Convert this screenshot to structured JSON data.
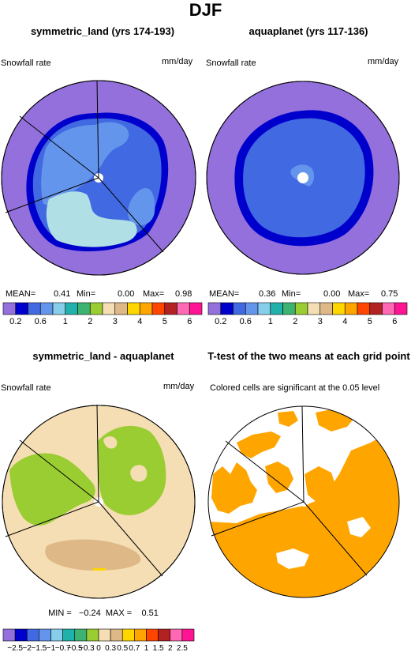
{
  "title": "DJF",
  "panels": [
    {
      "title": "symmetric_land (yrs 174-193)",
      "left_label": "Snowfall rate",
      "right_label": "mm/day",
      "stats": {
        "mean_label": "MEAN=",
        "mean": "0.41",
        "min_label": "Min=",
        "min": "0.00",
        "max_label": "Max=",
        "max": "0.98"
      }
    },
    {
      "title": "aquaplanet (yrs 117-136)",
      "left_label": "Snowfall rate",
      "right_label": "mm/day",
      "stats": {
        "mean_label": "MEAN=",
        "mean": "0.36",
        "min_label": "Min=",
        "min": "0.00",
        "max_label": "Max=",
        "max": "0.75"
      }
    },
    {
      "title": "symmetric_land - aquaplanet",
      "left_label": "Snowfall rate",
      "right_label": "mm/day",
      "stats_text": "MIN =   −0.24  MAX =    0.51"
    },
    {
      "title": "T-test of the two means at each grid point",
      "left_label": "Colored cells are significant at the 0.05 level"
    }
  ],
  "chart_data": [
    {
      "type": "heatmap",
      "projection": "polar stereographic (north pole)",
      "panel": "symmetric_land (yrs 174-193)",
      "units": "mm/day",
      "levels": [
        0.2,
        0.4,
        0.6,
        0.8,
        1,
        1.5,
        2,
        2.5,
        3,
        3.5,
        4,
        4.5,
        5,
        5.5,
        6
      ],
      "level_labels": [
        "0.2",
        "0.6",
        "1",
        "2",
        "3",
        "4",
        "5",
        "6"
      ],
      "colors": [
        "#9370db",
        "#0000cd",
        "#4169e1",
        "#6495ed",
        "#87ceeb",
        "#20b2aa",
        "#3cb371",
        "#9acd32",
        "#f5deb3",
        "#deb887",
        "#ffd700",
        "#ffa500",
        "#ff4500",
        "#b22222",
        "#ff69b4",
        "#ff1493"
      ],
      "mean": 0.41,
      "min": 0.0,
      "max": 0.98
    },
    {
      "type": "heatmap",
      "projection": "polar stereographic (north pole)",
      "panel": "aquaplanet (yrs 117-136)",
      "units": "mm/day",
      "levels": [
        0.2,
        0.4,
        0.6,
        0.8,
        1,
        1.5,
        2,
        2.5,
        3,
        3.5,
        4,
        4.5,
        5,
        5.5,
        6
      ],
      "level_labels": [
        "0.2",
        "0.6",
        "1",
        "2",
        "3",
        "4",
        "5",
        "6"
      ],
      "colors": [
        "#9370db",
        "#0000cd",
        "#4169e1",
        "#6495ed",
        "#87ceeb",
        "#20b2aa",
        "#3cb371",
        "#9acd32",
        "#f5deb3",
        "#deb887",
        "#ffd700",
        "#ffa500",
        "#ff4500",
        "#b22222",
        "#ff69b4",
        "#ff1493"
      ],
      "mean": 0.36,
      "min": 0.0,
      "max": 0.75
    },
    {
      "type": "heatmap",
      "projection": "polar stereographic (north pole)",
      "panel": "symmetric_land - aquaplanet",
      "units": "mm/day",
      "levels": [
        -2.5,
        -2,
        -1.5,
        -1,
        -0.7,
        -0.5,
        -0.3,
        0,
        0.3,
        0.5,
        0.7,
        1,
        1.5,
        2,
        2.5
      ],
      "level_labels": [
        "−2.5",
        "−2",
        "−1.5",
        "−1",
        "−0.7",
        "−0.5",
        "−0.3",
        "0",
        "0.3",
        "0.5",
        "0.7",
        "1",
        "1.5",
        "2",
        "2.5"
      ],
      "colors": [
        "#9370db",
        "#0000cd",
        "#4169e1",
        "#6495ed",
        "#87ceeb",
        "#20b2aa",
        "#3cb371",
        "#9acd32",
        "#f5deb3",
        "#deb887",
        "#ffd700",
        "#ffa500",
        "#ff4500",
        "#b22222",
        "#ff69b4",
        "#ff1493"
      ],
      "min": -0.24,
      "max": 0.51
    },
    {
      "type": "heatmap",
      "projection": "polar stereographic (north pole)",
      "panel": "T-test of the two means at each grid point",
      "significance_level": 0.05,
      "significant_color": "#ffa500"
    }
  ]
}
